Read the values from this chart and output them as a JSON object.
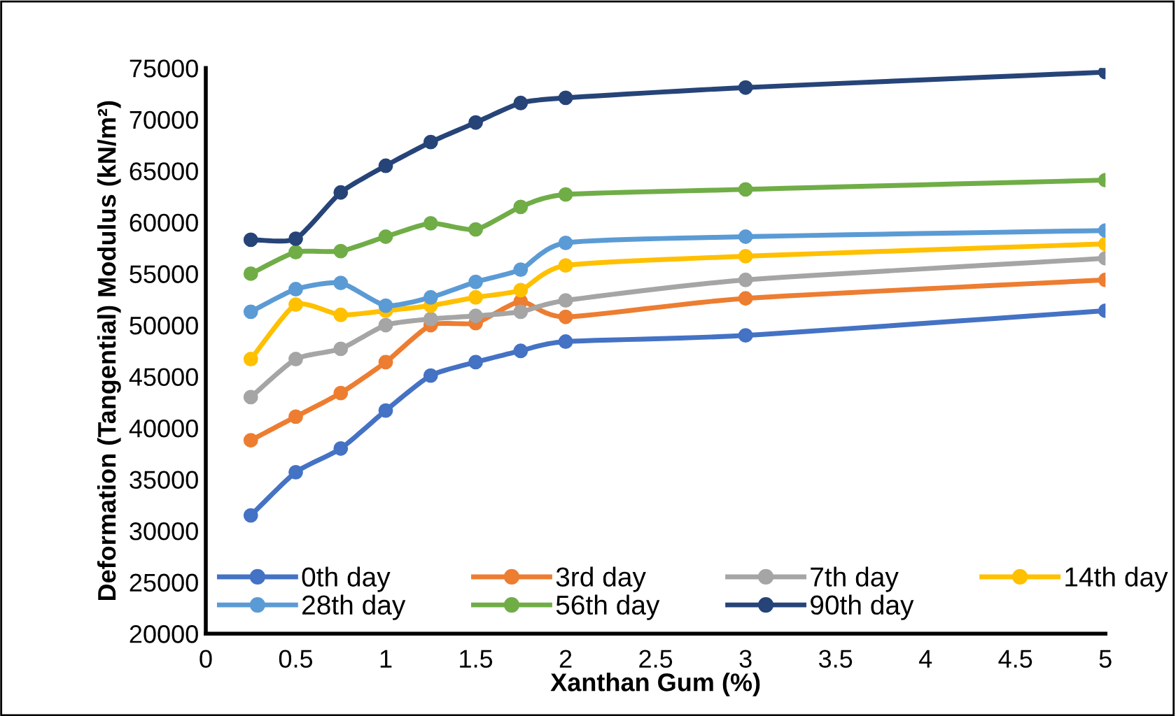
{
  "chart_data": {
    "type": "line",
    "xlabel": "Xanthan Gum (%)",
    "ylabel": "Deformation (Tangential) Modulus (kN/m²)",
    "x": [
      0.25,
      0.5,
      0.75,
      1,
      1.25,
      1.5,
      1.75,
      2,
      3,
      5
    ],
    "xlim": [
      0,
      5
    ],
    "xticks": [
      0,
      0.5,
      1,
      1.5,
      2,
      2.5,
      3,
      3.5,
      4,
      4.5,
      5
    ],
    "ylim": [
      20000,
      75000
    ],
    "yticks": [
      20000,
      25000,
      30000,
      35000,
      40000,
      45000,
      50000,
      55000,
      60000,
      65000,
      70000,
      75000
    ],
    "grid": false,
    "legend": "bottom",
    "marker": "circle",
    "line_style": "solid",
    "series": [
      {
        "name": "0th day",
        "color": "#4472c4",
        "values": [
          31500,
          35700,
          38000,
          41700,
          45100,
          46400,
          47500,
          48400,
          49000,
          51400
        ]
      },
      {
        "name": "3rd day",
        "color": "#ed7d31",
        "values": [
          38800,
          41100,
          43400,
          46400,
          50000,
          50200,
          52300,
          50800,
          52600,
          54400
        ]
      },
      {
        "name": "7th day",
        "color": "#a5a5a5",
        "values": [
          43000,
          46700,
          47700,
          50000,
          50600,
          50900,
          51300,
          52400,
          54400,
          56500
        ]
      },
      {
        "name": "14th day",
        "color": "#ffc000",
        "values": [
          46700,
          52000,
          51000,
          51400,
          51900,
          52700,
          53400,
          55800,
          56700,
          57900
        ]
      },
      {
        "name": "28th day",
        "color": "#5b9bd5",
        "values": [
          51300,
          53500,
          54100,
          51900,
          52700,
          54200,
          55400,
          58000,
          58600,
          59200
        ]
      },
      {
        "name": "56th day",
        "color": "#70ad47",
        "values": [
          55000,
          57100,
          57200,
          58600,
          59900,
          59300,
          61500,
          62700,
          63200,
          64100
        ]
      },
      {
        "name": "90th day",
        "color": "#264478",
        "values": [
          58300,
          58400,
          62900,
          65500,
          67800,
          69700,
          71600,
          72100,
          73100,
          74600
        ]
      }
    ]
  }
}
